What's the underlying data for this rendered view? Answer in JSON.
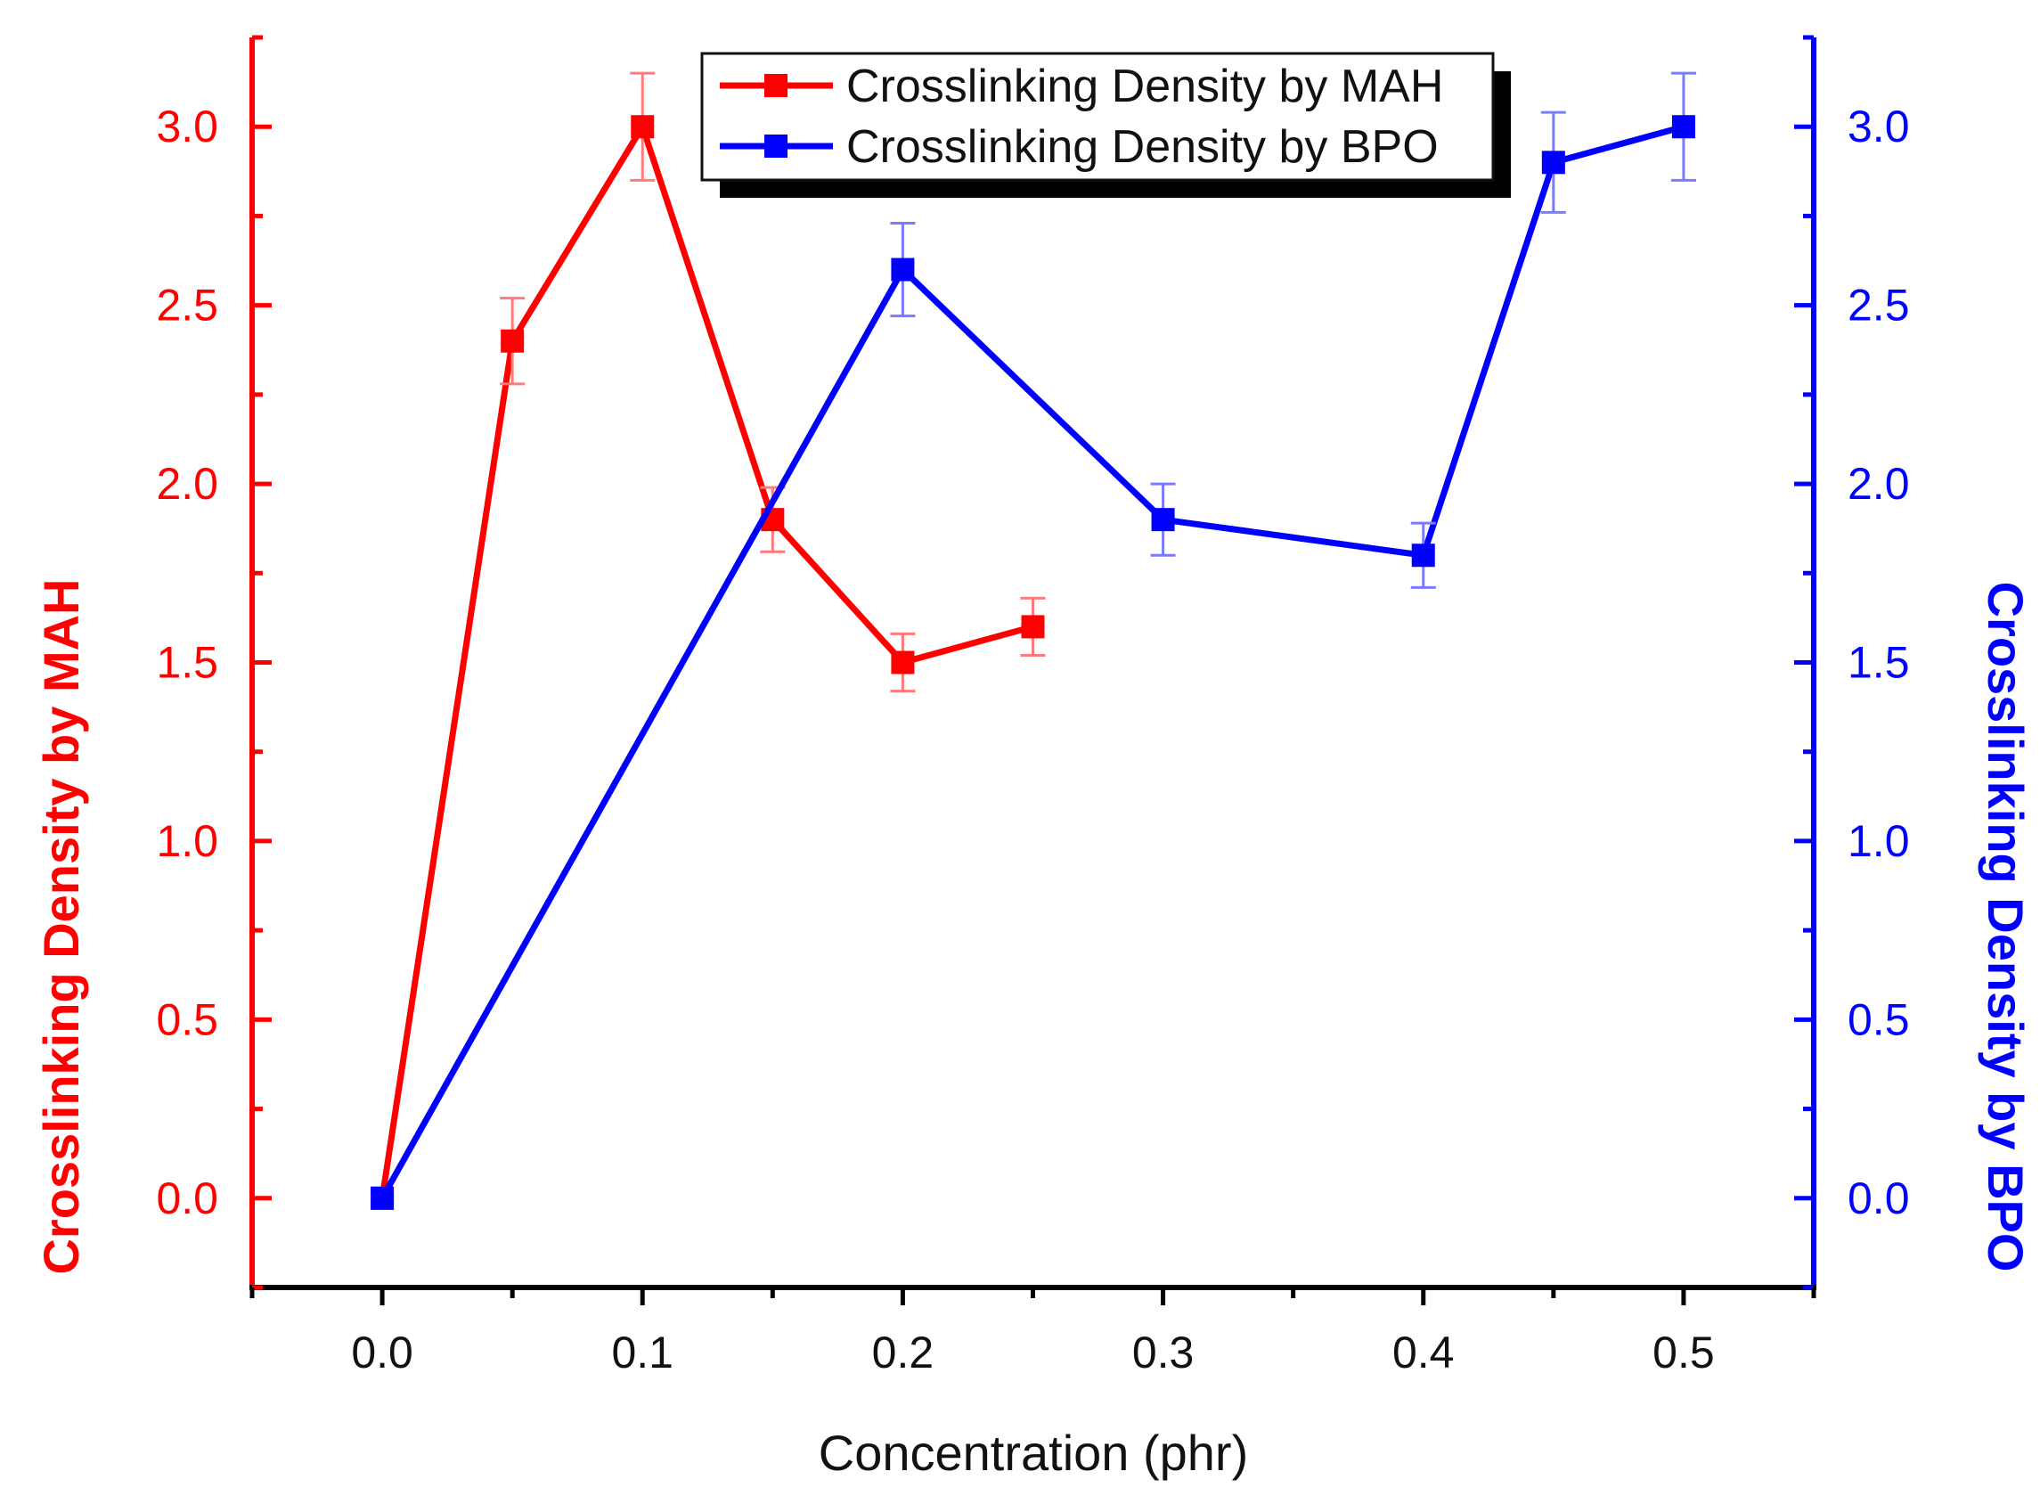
{
  "chart_data": {
    "type": "line",
    "x": [
      0.0,
      0.05,
      0.1,
      0.15,
      0.2,
      0.25,
      0.3,
      0.4,
      0.45,
      0.5
    ],
    "xlim": [
      -0.05,
      0.55
    ],
    "xticks": [
      0.0,
      0.1,
      0.2,
      0.3,
      0.4,
      0.5
    ],
    "xtick_labels": [
      "0.0",
      "0.1",
      "0.2",
      "0.3",
      "0.4",
      "0.5"
    ],
    "xlabel": "Concentration (phr)",
    "ylim": [
      -0.25,
      3.25
    ],
    "yticks": [
      0.0,
      0.5,
      1.0,
      1.5,
      2.0,
      2.5,
      3.0
    ],
    "ytick_labels": [
      "0.0",
      "0.5",
      "1.0",
      "1.5",
      "2.0",
      "2.5",
      "3.0"
    ],
    "ylabel_left": "Crosslinking Density by MAH",
    "ylabel_right": "Crosslinking Density by BPO",
    "grid": false,
    "legend_position": "top-center",
    "series": [
      {
        "name": "Crosslinking Density by MAH",
        "axis": "left",
        "color": "#ff0000",
        "points": [
          {
            "x": 0.0,
            "y": 0.0,
            "err": 0.0
          },
          {
            "x": 0.05,
            "y": 2.4,
            "err": 0.12
          },
          {
            "x": 0.1,
            "y": 3.0,
            "err": 0.15
          },
          {
            "x": 0.15,
            "y": 1.9,
            "err": 0.09
          },
          {
            "x": 0.2,
            "y": 1.5,
            "err": 0.08
          },
          {
            "x": 0.25,
            "y": 1.6,
            "err": 0.08
          }
        ]
      },
      {
        "name": "Crosslinking Density by BPO",
        "axis": "right",
        "color": "#0000ff",
        "points": [
          {
            "x": 0.0,
            "y": 0.0,
            "err": 0.0
          },
          {
            "x": 0.2,
            "y": 2.6,
            "err": 0.13
          },
          {
            "x": 0.3,
            "y": 1.9,
            "err": 0.1
          },
          {
            "x": 0.4,
            "y": 1.8,
            "err": 0.09
          },
          {
            "x": 0.45,
            "y": 2.9,
            "err": 0.14
          },
          {
            "x": 0.5,
            "y": 3.0,
            "err": 0.15
          }
        ]
      }
    ]
  },
  "colors": {
    "left_axis": "#ff0000",
    "right_axis": "#0000ff",
    "bottom_axis": "#000000",
    "legend_shadow": "#000000"
  }
}
